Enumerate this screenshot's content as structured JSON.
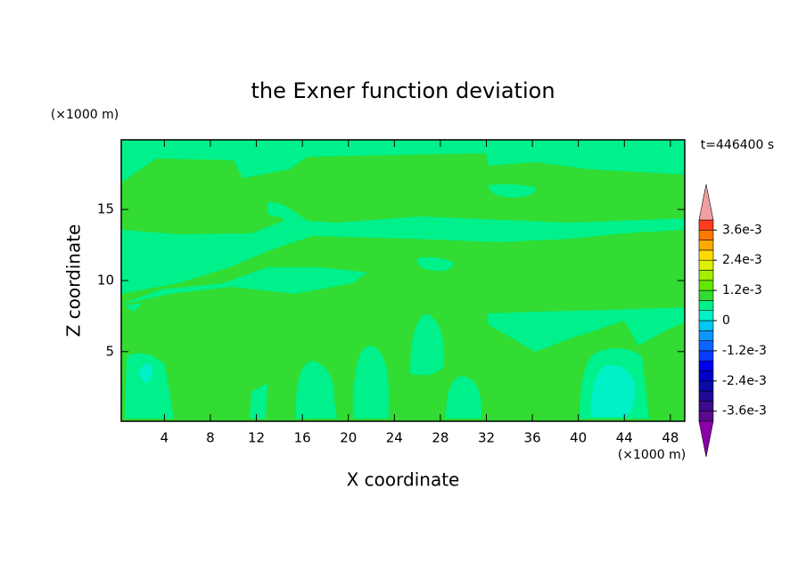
{
  "chart_data": {
    "type": "contour",
    "title": "the Exner function deviation",
    "xlabel": "X coordinate",
    "ylabel": "Z coordinate",
    "x_unit": "(×1000 m)",
    "y_unit": "(×1000 m)",
    "time_label": "t=446400 s",
    "xlim": [
      0.25,
      49.25
    ],
    "ylim": [
      0.1,
      19.9
    ],
    "xticks": [
      4,
      8,
      12,
      16,
      20,
      24,
      28,
      32,
      36,
      40,
      44,
      48
    ],
    "yticks": [
      5,
      10,
      15
    ],
    "colorbar": {
      "levels": [
        -0.004,
        -0.0036,
        -0.0032,
        -0.0028,
        -0.0024,
        -0.002,
        -0.0016,
        -0.0012,
        -0.0008,
        -0.0004,
        0,
        0.0004,
        0.0008,
        0.0012,
        0.0016,
        0.002,
        0.0024,
        0.0028,
        0.0032,
        0.0036,
        0.004
      ],
      "colors": [
        "#5a0a8c",
        "#3c0a8c",
        "#1e0a96",
        "#0a0aaa",
        "#0000c8",
        "#0000f0",
        "#0a3cff",
        "#0a64ff",
        "#0a96ff",
        "#00c8f0",
        "#00f0c8",
        "#00f08c",
        "#32dc32",
        "#64e600",
        "#a0f000",
        "#dcf000",
        "#ffdc00",
        "#ffaa00",
        "#ff7800",
        "#ff3c1e"
      ],
      "under_color": "#8c00aa",
      "over_color": "#f0a0a0",
      "ticks": [
        {
          "value": -0.0036,
          "label": "-3.6e-3"
        },
        {
          "value": -0.0024,
          "label": "-2.4e-3"
        },
        {
          "value": -0.0012,
          "label": "-1.2e-3"
        },
        0,
        {
          "value": 0.0012,
          "label": "1.2e-3"
        },
        {
          "value": 0.0024,
          "label": "2.4e-3"
        },
        {
          "value": 0.0036,
          "label": "3.6e-3"
        }
      ]
    }
  }
}
